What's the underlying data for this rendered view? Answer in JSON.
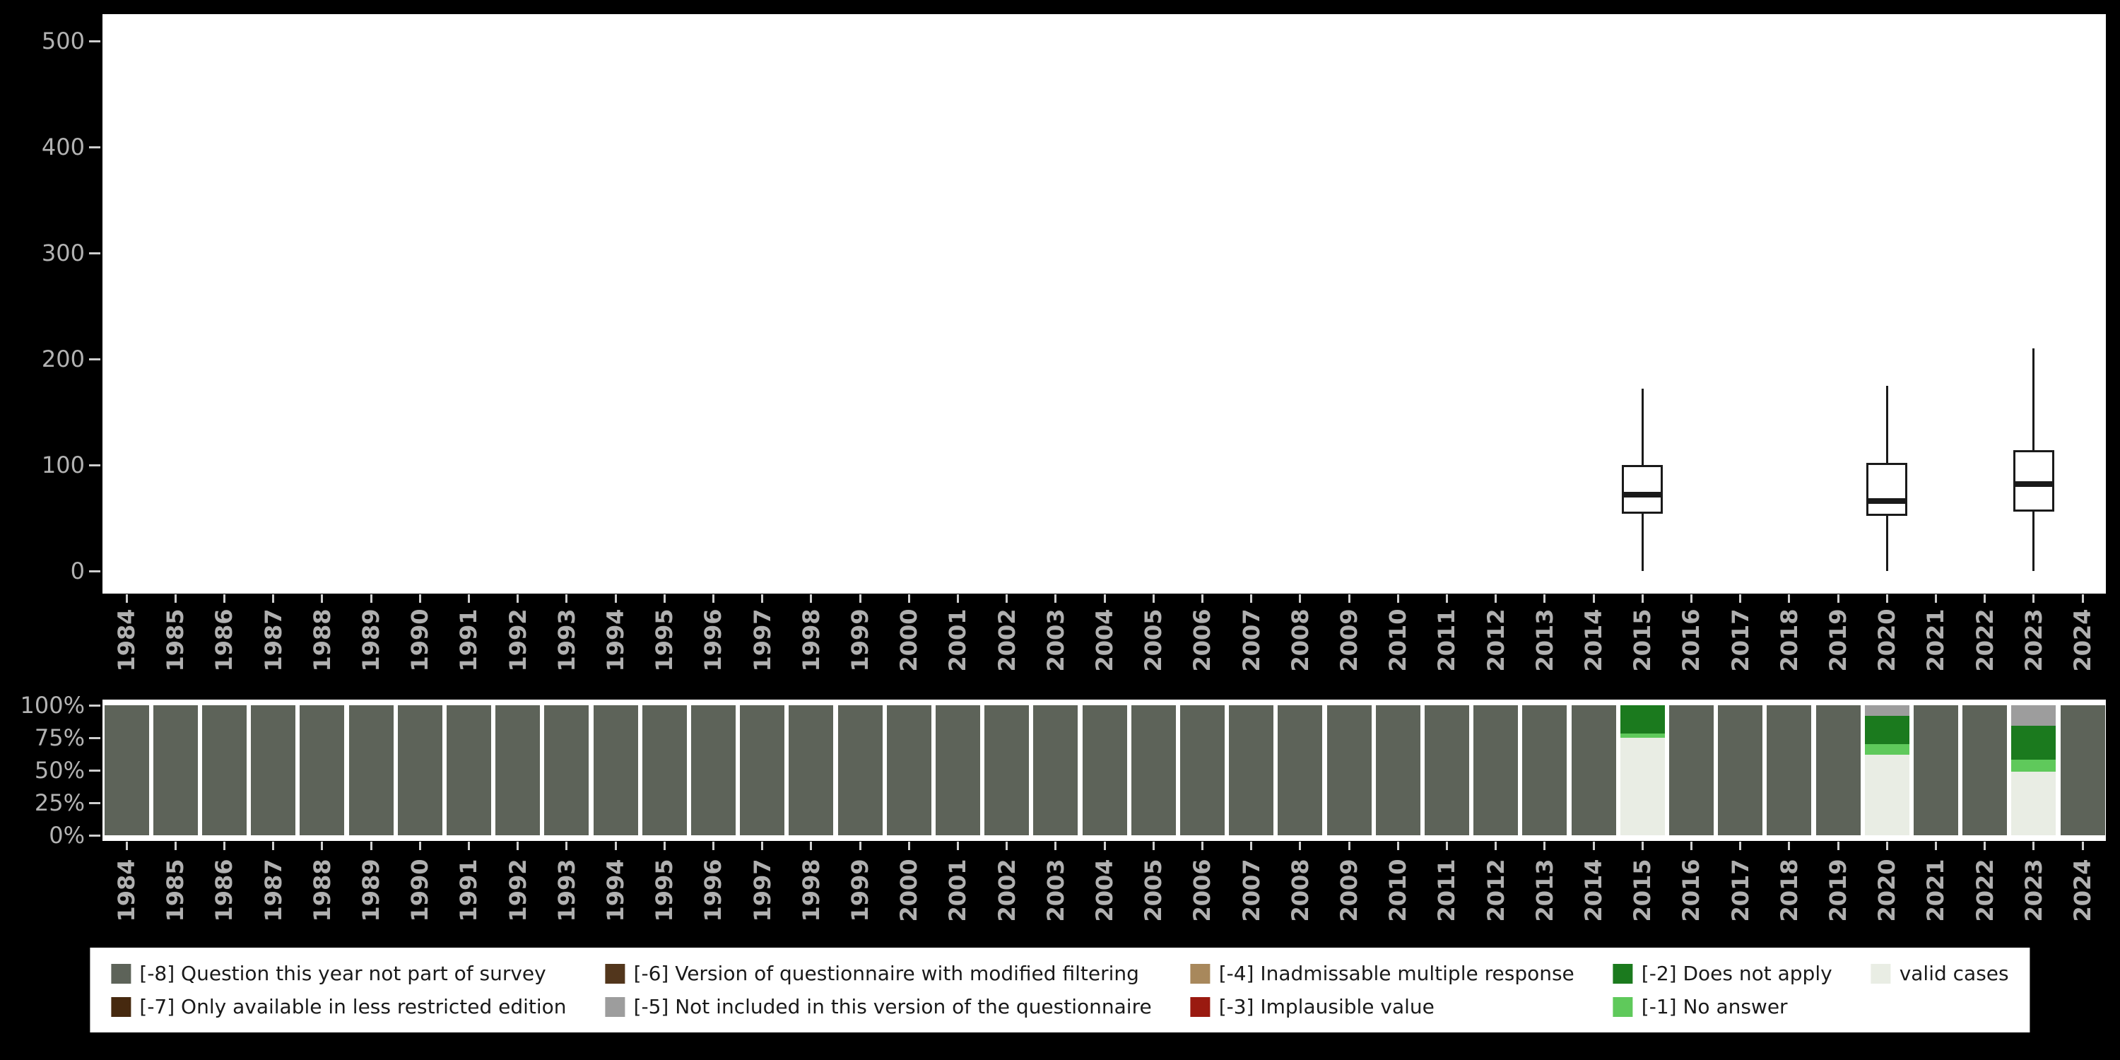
{
  "page": {
    "background": "#000000",
    "panel": "#ffffff"
  },
  "years": [
    "1984",
    "1985",
    "1986",
    "1987",
    "1988",
    "1989",
    "1990",
    "1991",
    "1992",
    "1993",
    "1994",
    "1995",
    "1996",
    "1997",
    "1998",
    "1999",
    "2000",
    "2001",
    "2002",
    "2003",
    "2004",
    "2005",
    "2006",
    "2007",
    "2008",
    "2009",
    "2010",
    "2011",
    "2012",
    "2013",
    "2014",
    "2015",
    "2016",
    "2017",
    "2018",
    "2019",
    "2020",
    "2021",
    "2022",
    "2023",
    "2024"
  ],
  "legend": {
    "items": [
      {
        "key": "missing_8",
        "label": "[-8] Question this year not part of survey",
        "color": "#5d6359"
      },
      {
        "key": "missing_7",
        "label": "[-7] Only available in less restricted edition",
        "color": "#46290f"
      },
      {
        "key": "missing_6",
        "label": "[-6] Version of questionnaire with modified filtering",
        "color": "#52361c"
      },
      {
        "key": "missing_5",
        "label": "[-5] Not included in this version of the questionnaire",
        "color": "#9d9d9d"
      },
      {
        "key": "missing_4",
        "label": "[-4] Inadmissable multiple response",
        "color": "#a8885c"
      },
      {
        "key": "missing_3",
        "label": "[-3] Implausible value",
        "color": "#9a1a10"
      },
      {
        "key": "missing_2",
        "label": "[-2] Does not apply",
        "color": "#1b7a1e"
      },
      {
        "key": "missing_1",
        "label": "[-1] No answer",
        "color": "#5fc95b"
      },
      {
        "key": "valid",
        "label": "valid cases",
        "color": "#e9ede4"
      }
    ]
  },
  "chart_data": [
    {
      "type": "boxplot",
      "title": "",
      "xlabel": "",
      "ylabel": "",
      "x": "years",
      "ylim": [
        0,
        500
      ],
      "y_tick_labels": [
        "0",
        "100",
        "200",
        "300",
        "400",
        "500"
      ],
      "boxes": [
        {
          "year": "2015",
          "min": 0,
          "q1": 54,
          "median": 72,
          "q3": 100,
          "max": 172
        },
        {
          "year": "2020",
          "min": 0,
          "q1": 52,
          "median": 66,
          "q3": 102,
          "max": 175
        },
        {
          "year": "2023",
          "min": 0,
          "q1": 56,
          "median": 82,
          "q3": 114,
          "max": 210
        }
      ]
    },
    {
      "type": "stacked-bar-percent",
      "title": "",
      "x": "years",
      "ylim": [
        0,
        100
      ],
      "y_tick_labels": [
        "0%",
        "25%",
        "50%",
        "75%",
        "100%"
      ],
      "default_category": "missing_8",
      "bars": {
        "2015": [
          {
            "category": "missing_2",
            "pct": 22
          },
          {
            "category": "missing_1",
            "pct": 3
          },
          {
            "category": "valid",
            "pct": 75
          }
        ],
        "2020": [
          {
            "category": "missing_5",
            "pct": 8
          },
          {
            "category": "missing_2",
            "pct": 22
          },
          {
            "category": "missing_1",
            "pct": 8
          },
          {
            "category": "valid",
            "pct": 62
          }
        ],
        "2023": [
          {
            "category": "missing_5",
            "pct": 16
          },
          {
            "category": "missing_2",
            "pct": 26
          },
          {
            "category": "missing_1",
            "pct": 9
          },
          {
            "category": "valid",
            "pct": 49
          }
        ]
      }
    }
  ]
}
